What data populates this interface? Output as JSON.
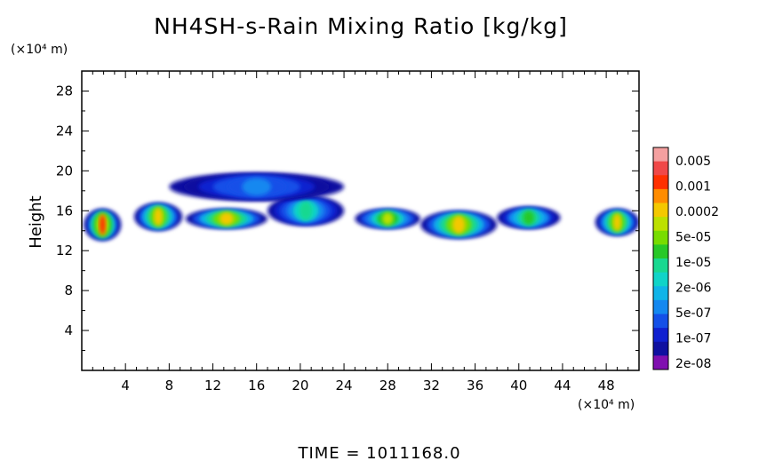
{
  "chart_data": {
    "type": "heatmap",
    "title": "NH4SH-s-Rain Mixing Ratio [kg/kg]",
    "ylabel": "Height",
    "xlabel": "",
    "y_scale_label": "(×10⁴ m)",
    "x_scale_label": "(×10⁴ m)",
    "xlim": [
      0,
      51
    ],
    "ylim": [
      0,
      30
    ],
    "x_ticks": [
      4,
      8,
      12,
      16,
      20,
      24,
      28,
      32,
      36,
      40,
      44,
      48
    ],
    "y_ticks": [
      4,
      8,
      12,
      16,
      20,
      24,
      28
    ],
    "time_label": "TIME = 1011168.0",
    "colorbar": {
      "labels": [
        "0.005",
        "0.001",
        "0.0002",
        "5e-05",
        "1e-05",
        "2e-06",
        "5e-07",
        "1e-07",
        "2e-08"
      ],
      "colors_top_to_bottom": [
        "#f4a0a0",
        "#f04848",
        "#ff3000",
        "#ff8c00",
        "#f4c800",
        "#bce000",
        "#78dc00",
        "#28c828",
        "#18d890",
        "#10d4c8",
        "#10b4e8",
        "#1488f0",
        "#1450e8",
        "#1020d0",
        "#1010a0",
        "#8010b0"
      ]
    },
    "field_regions": [
      {
        "x": [
          0.2,
          3.6
        ],
        "y": [
          13.0,
          16.2
        ],
        "level": 0.85
      },
      {
        "x": [
          4.8,
          9.2
        ],
        "y": [
          14.0,
          16.8
        ],
        "level": 0.75
      },
      {
        "x": [
          9.5,
          17.0
        ],
        "y": [
          14.2,
          16.2
        ],
        "level": 0.7
      },
      {
        "x": [
          17.0,
          24.0
        ],
        "y": [
          14.5,
          17.5
        ],
        "level": 0.45
      },
      {
        "x": [
          8.0,
          24.0
        ],
        "y": [
          17.0,
          19.8
        ],
        "level": 0.25
      },
      {
        "x": [
          25.0,
          31.0
        ],
        "y": [
          14.2,
          16.2
        ],
        "level": 0.65
      },
      {
        "x": [
          31.0,
          38.0
        ],
        "y": [
          13.2,
          16.0
        ],
        "level": 0.7
      },
      {
        "x": [
          38.0,
          43.8
        ],
        "y": [
          14.2,
          16.4
        ],
        "level": 0.55
      },
      {
        "x": [
          47.0,
          51.0
        ],
        "y": [
          13.5,
          16.2
        ],
        "level": 0.7
      }
    ]
  }
}
